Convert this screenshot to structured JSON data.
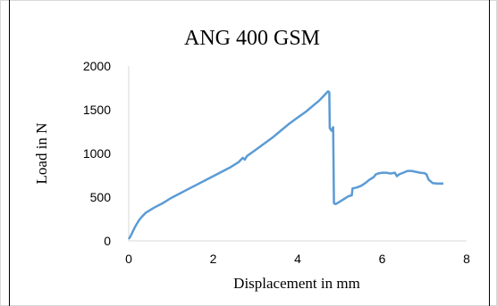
{
  "chart_data": {
    "type": "line",
    "title": "ANG 400 GSM",
    "xlabel": "Displacement in mm",
    "ylabel": "Load in N",
    "xlim": [
      0,
      8
    ],
    "ylim": [
      0,
      2000
    ],
    "x_ticks": [
      0,
      2,
      4,
      6,
      8
    ],
    "y_ticks": [
      0,
      500,
      1000,
      1500,
      2000
    ],
    "grid": false,
    "legend": "none",
    "series": [
      {
        "color": "#5b9bd5",
        "points": [
          [
            0.0,
            20
          ],
          [
            0.05,
            60
          ],
          [
            0.1,
            110
          ],
          [
            0.15,
            160
          ],
          [
            0.2,
            200
          ],
          [
            0.25,
            240
          ],
          [
            0.3,
            270
          ],
          [
            0.4,
            320
          ],
          [
            0.5,
            350
          ],
          [
            0.6,
            380
          ],
          [
            0.8,
            430
          ],
          [
            1.0,
            490
          ],
          [
            1.2,
            540
          ],
          [
            1.4,
            590
          ],
          [
            1.6,
            640
          ],
          [
            1.8,
            690
          ],
          [
            2.0,
            740
          ],
          [
            2.2,
            790
          ],
          [
            2.4,
            840
          ],
          [
            2.6,
            900
          ],
          [
            2.7,
            950
          ],
          [
            2.75,
            930
          ],
          [
            2.8,
            970
          ],
          [
            3.0,
            1040
          ],
          [
            3.2,
            1110
          ],
          [
            3.4,
            1180
          ],
          [
            3.6,
            1260
          ],
          [
            3.8,
            1340
          ],
          [
            4.0,
            1410
          ],
          [
            4.2,
            1480
          ],
          [
            4.4,
            1560
          ],
          [
            4.5,
            1600
          ],
          [
            4.6,
            1650
          ],
          [
            4.68,
            1690
          ],
          [
            4.72,
            1710
          ],
          [
            4.75,
            1700
          ],
          [
            4.76,
            1290
          ],
          [
            4.8,
            1260
          ],
          [
            4.84,
            1300
          ],
          [
            4.86,
            430
          ],
          [
            4.9,
            420
          ],
          [
            5.0,
            450
          ],
          [
            5.1,
            480
          ],
          [
            5.2,
            510
          ],
          [
            5.28,
            520
          ],
          [
            5.3,
            600
          ],
          [
            5.4,
            610
          ],
          [
            5.5,
            630
          ],
          [
            5.6,
            660
          ],
          [
            5.7,
            700
          ],
          [
            5.8,
            730
          ],
          [
            5.85,
            760
          ],
          [
            5.9,
            770
          ],
          [
            6.0,
            780
          ],
          [
            6.1,
            780
          ],
          [
            6.2,
            770
          ],
          [
            6.3,
            780
          ],
          [
            6.35,
            740
          ],
          [
            6.4,
            760
          ],
          [
            6.5,
            780
          ],
          [
            6.6,
            800
          ],
          [
            6.7,
            800
          ],
          [
            6.8,
            790
          ],
          [
            6.9,
            780
          ],
          [
            7.0,
            775
          ],
          [
            7.05,
            760
          ],
          [
            7.1,
            700
          ],
          [
            7.2,
            660
          ],
          [
            7.3,
            655
          ],
          [
            7.4,
            655
          ],
          [
            7.45,
            655
          ]
        ]
      }
    ]
  }
}
